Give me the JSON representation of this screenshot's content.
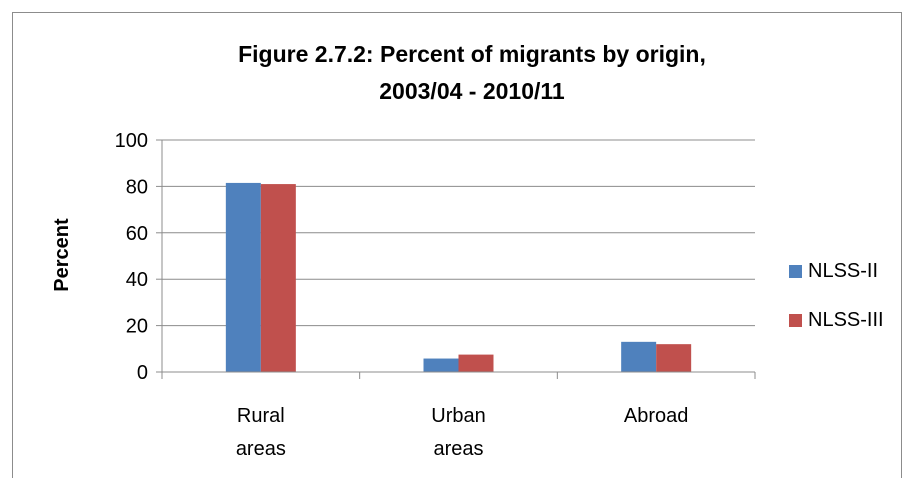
{
  "chart_data": {
    "type": "bar",
    "title_lines": [
      "Figure 2.7.2: Percent of migrants by origin,",
      "2003/04 - 2010/11"
    ],
    "ylabel": "Percent",
    "xlabel": "",
    "categories": [
      [
        "Rural",
        "areas"
      ],
      [
        "Urban",
        "areas"
      ],
      [
        "Abroad"
      ]
    ],
    "series": [
      {
        "name": "NLSS-II",
        "color": "#4f81bd",
        "values": [
          81.5,
          5.8,
          13.0
        ]
      },
      {
        "name": "NLSS-III",
        "color": "#c0504d",
        "values": [
          81.0,
          7.5,
          12.0
        ]
      }
    ],
    "ylim": [
      0,
      100
    ],
    "yticks": [
      0,
      20,
      40,
      60,
      80,
      100
    ],
    "grid": true,
    "legend_position": "right"
  }
}
